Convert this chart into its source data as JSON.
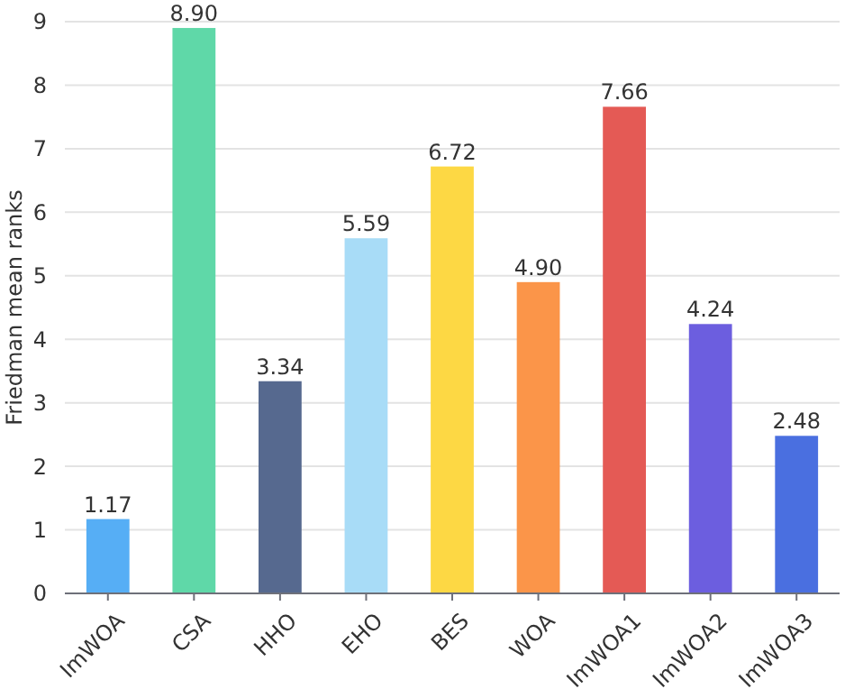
{
  "chart_data": {
    "type": "bar",
    "ylabel": "Friedman mean ranks",
    "categories": [
      "ImWOA",
      "CSA",
      "HHO",
      "EHO",
      "BES",
      "WOA",
      "ImWOA1",
      "ImWOA2",
      "ImWOA3"
    ],
    "values": [
      1.17,
      8.9,
      3.34,
      5.59,
      6.72,
      4.9,
      7.66,
      4.24,
      2.48
    ],
    "value_labels": [
      "1.17",
      "8.90",
      "3.34",
      "5.59",
      "6.72",
      "4.90",
      "7.66",
      "4.24",
      "2.48"
    ],
    "colors": [
      "#56aef5",
      "#5fd8a8",
      "#56698f",
      "#a8dcf7",
      "#fdd844",
      "#fb9549",
      "#e45a55",
      "#6c5edf",
      "#4a6fe0"
    ],
    "ylim": [
      0,
      9
    ],
    "yticks": [
      0,
      1,
      2,
      3,
      4,
      5,
      6,
      7,
      8,
      9
    ],
    "grid": "y"
  }
}
